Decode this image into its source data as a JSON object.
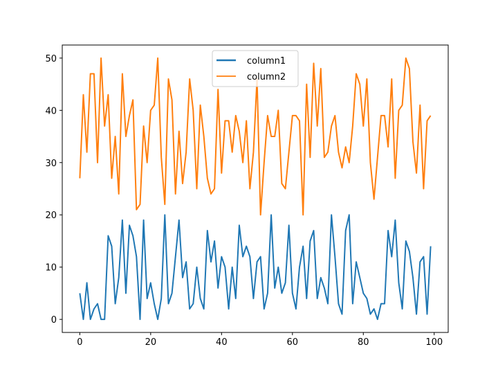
{
  "chart_data": {
    "type": "line",
    "title": "",
    "xlabel": "",
    "ylabel": "",
    "xlim": [
      -4.95,
      103.95
    ],
    "ylim": [
      -2.5,
      52.5
    ],
    "xticks": [
      0,
      20,
      40,
      60,
      80,
      100
    ],
    "yticks": [
      0,
      10,
      20,
      30,
      40,
      50
    ],
    "grid": false,
    "legend_position": "top-center",
    "series": [
      {
        "name": "column1",
        "color": "#1f77b4",
        "values": [
          5,
          0,
          7,
          0,
          2,
          3,
          0,
          0,
          16,
          14,
          3,
          8,
          19,
          5,
          18,
          16,
          12,
          0,
          19,
          4,
          7,
          3,
          0,
          4,
          20,
          3,
          5,
          12,
          19,
          8,
          11,
          2,
          3,
          10,
          4,
          2,
          17,
          11,
          15,
          6,
          12,
          10,
          2,
          10,
          4,
          18,
          12,
          14,
          12,
          4,
          11,
          12,
          2,
          5,
          20,
          6,
          10,
          5,
          7,
          18,
          5,
          2,
          10,
          14,
          4,
          15,
          17,
          4,
          8,
          6,
          3,
          20,
          12,
          3,
          1,
          17,
          20,
          3,
          11,
          8,
          5,
          4,
          1,
          2,
          0,
          3,
          3,
          17,
          12,
          19,
          7,
          2,
          15,
          13,
          8,
          1,
          11,
          12,
          1,
          14
        ]
      },
      {
        "name": "column2",
        "color": "#ff7f0e",
        "values": [
          27,
          43,
          32,
          47,
          47,
          30,
          50,
          37,
          43,
          27,
          35,
          24,
          47,
          35,
          39,
          42,
          21,
          22,
          37,
          30,
          40,
          41,
          50,
          31,
          22,
          46,
          42,
          24,
          36,
          26,
          32,
          46,
          40,
          25,
          41,
          35,
          27,
          24,
          25,
          44,
          28,
          38,
          38,
          32,
          39,
          36,
          30,
          38,
          25,
          32,
          46,
          20,
          30,
          39,
          35,
          35,
          40,
          26,
          25,
          32,
          39,
          39,
          38,
          20,
          45,
          31,
          49,
          37,
          48,
          31,
          32,
          37,
          39,
          32,
          29,
          33,
          30,
          37,
          47,
          45,
          37,
          46,
          30,
          23,
          31,
          39,
          39,
          33,
          46,
          27,
          40,
          41,
          50,
          48,
          34,
          28,
          41,
          25,
          38,
          39
        ]
      }
    ]
  }
}
